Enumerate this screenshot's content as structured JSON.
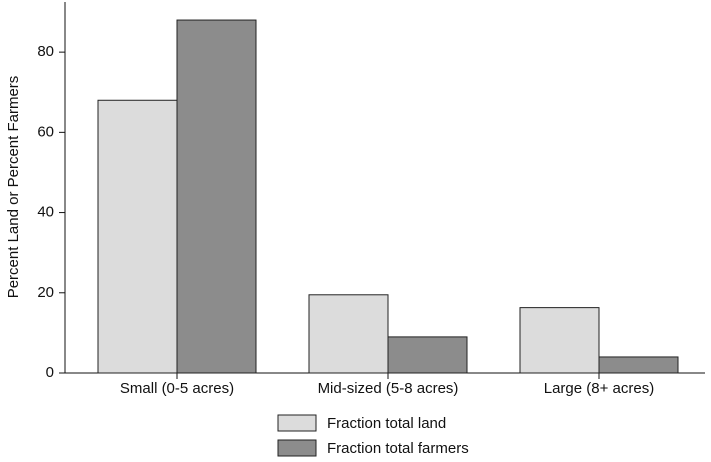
{
  "chart_data": {
    "type": "bar",
    "ylabel": "Percent Land or Percent Farmers",
    "categories": [
      "Small (0-5 acres)",
      "Mid-sized (5-8 acres)",
      "Large (8+ acres)"
    ],
    "series": [
      {
        "name": "Fraction total land",
        "color": "#dcdcdc",
        "values": [
          68,
          19.5,
          16.3
        ]
      },
      {
        "name": "Fraction total farmers",
        "color": "#8c8c8c",
        "values": [
          88,
          9,
          4
        ]
      }
    ],
    "ylim": [
      0,
      92.5
    ],
    "yticks": [
      0,
      20,
      40,
      60,
      80
    ],
    "grid": false,
    "legend": "bottom"
  }
}
